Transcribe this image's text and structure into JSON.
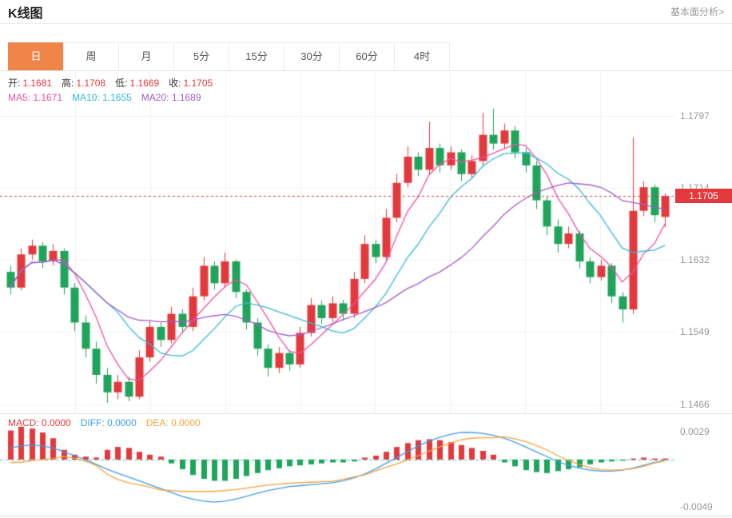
{
  "header": {
    "title": "K线图",
    "link": "基本面分析>"
  },
  "tabs": {
    "items": [
      {
        "label": "日",
        "active": true
      },
      {
        "label": "周",
        "active": false
      },
      {
        "label": "月",
        "active": false
      },
      {
        "label": "5分",
        "active": false
      },
      {
        "label": "15分",
        "active": false
      },
      {
        "label": "30分",
        "active": false
      },
      {
        "label": "60分",
        "active": false
      },
      {
        "label": "4时",
        "active": false
      }
    ],
    "active_color": "#f0854a"
  },
  "info": {
    "ohlc": [
      {
        "label": "开:",
        "value": "1.1681"
      },
      {
        "label": "高:",
        "value": "1.1708"
      },
      {
        "label": "低:",
        "value": "1.1669"
      },
      {
        "label": "收:",
        "value": "1.1705"
      }
    ],
    "ma": [
      {
        "label": "MA5:",
        "value": "1.1671",
        "color": "#f050a2"
      },
      {
        "label": "MA10:",
        "value": "1.1655",
        "color": "#35b8dc"
      },
      {
        "label": "MA20:",
        "value": "1.1689",
        "color": "#a45cc8"
      }
    ]
  },
  "axis": {
    "price_labels": [
      "1.1797",
      "1.1714",
      "1.1632",
      "1.1549",
      "1.1466"
    ],
    "current_price": "1.1705"
  },
  "macd_panel": {
    "labels": [
      {
        "label": "MACD:",
        "value": "0.0000",
        "color": "#e4393c"
      },
      {
        "label": "DIFF:",
        "value": "0.0000",
        "color": "#3e9ce9"
      },
      {
        "label": "DEA:",
        "value": "0.0000",
        "color": "#f5a33d"
      }
    ],
    "axis_labels": [
      "0.0029",
      "-0.0049"
    ]
  },
  "chart_data": {
    "type": "candlestick",
    "title": "K线图 (日)",
    "up_color": "#e4393c",
    "down_color": "#1fa45b",
    "ma_colors": {
      "ma5": "#f050a2",
      "ma10": "#35b8dc",
      "ma20": "#a45cc8"
    },
    "current_price": 1.1705,
    "price_axis": {
      "min": 1.1456,
      "max": 1.1848,
      "gridlines": [
        1.1797,
        1.1714,
        1.1632,
        1.1549,
        1.1466
      ]
    },
    "displayed": {
      "open": 1.1681,
      "high": 1.1708,
      "low": 1.1669,
      "close": 1.1705,
      "ma5": 1.1671,
      "ma10": 1.1655,
      "ma20": 1.1689
    },
    "candles": [
      [
        1.1618,
        1.1625,
        1.1592,
        1.16
      ],
      [
        1.16,
        1.1645,
        1.1597,
        1.1638
      ],
      [
        1.1638,
        1.1655,
        1.1632,
        1.1648
      ],
      [
        1.1648,
        1.1652,
        1.1622,
        1.163
      ],
      [
        1.163,
        1.165,
        1.1625,
        1.1642
      ],
      [
        1.1642,
        1.1645,
        1.1592,
        1.16
      ],
      [
        1.16,
        1.1605,
        1.155,
        1.156
      ],
      [
        1.156,
        1.1568,
        1.152,
        1.153
      ],
      [
        1.153,
        1.1538,
        1.149,
        1.15
      ],
      [
        1.15,
        1.1508,
        1.1468,
        1.148
      ],
      [
        1.148,
        1.15,
        1.1472,
        1.1492
      ],
      [
        1.1492,
        1.1498,
        1.147,
        1.1475
      ],
      [
        1.1475,
        1.1528,
        1.1472,
        1.152
      ],
      [
        1.152,
        1.1562,
        1.1515,
        1.1555
      ],
      [
        1.1555,
        1.156,
        1.1532,
        1.154
      ],
      [
        1.154,
        1.1578,
        1.1536,
        1.157
      ],
      [
        1.157,
        1.1575,
        1.1548,
        1.1555
      ],
      [
        1.1555,
        1.16,
        1.155,
        1.159
      ],
      [
        1.159,
        1.1635,
        1.1585,
        1.1625
      ],
      [
        1.1625,
        1.163,
        1.1598,
        1.1605
      ],
      [
        1.1605,
        1.164,
        1.16,
        1.163
      ],
      [
        1.163,
        1.1632,
        1.1588,
        1.1595
      ],
      [
        1.1595,
        1.1598,
        1.1552,
        1.156
      ],
      [
        1.156,
        1.1565,
        1.1522,
        1.153
      ],
      [
        1.153,
        1.1535,
        1.1498,
        1.1508
      ],
      [
        1.1508,
        1.1532,
        1.1502,
        1.1525
      ],
      [
        1.1525,
        1.1528,
        1.1505,
        1.1512
      ],
      [
        1.1512,
        1.1555,
        1.1508,
        1.1548
      ],
      [
        1.1548,
        1.1588,
        1.1544,
        1.158
      ],
      [
        1.158,
        1.1585,
        1.1558,
        1.1565
      ],
      [
        1.1565,
        1.159,
        1.156,
        1.1582
      ],
      [
        1.1582,
        1.1586,
        1.1562,
        1.157
      ],
      [
        1.157,
        1.1618,
        1.1565,
        1.161
      ],
      [
        1.161,
        1.166,
        1.1605,
        1.165
      ],
      [
        1.165,
        1.1655,
        1.1628,
        1.1635
      ],
      [
        1.1635,
        1.169,
        1.163,
        1.168
      ],
      [
        1.168,
        1.173,
        1.1675,
        1.172
      ],
      [
        1.172,
        1.1762,
        1.1715,
        1.175
      ],
      [
        1.175,
        1.1755,
        1.1728,
        1.1735
      ],
      [
        1.1735,
        1.179,
        1.173,
        1.176
      ],
      [
        1.176,
        1.1765,
        1.1732,
        1.174
      ],
      [
        1.174,
        1.1762,
        1.1735,
        1.1755
      ],
      [
        1.1755,
        1.1758,
        1.1722,
        1.173
      ],
      [
        1.173,
        1.1752,
        1.1725,
        1.1745
      ],
      [
        1.1745,
        1.18,
        1.174,
        1.1775
      ],
      [
        1.1775,
        1.1805,
        1.1758,
        1.1765
      ],
      [
        1.1765,
        1.1788,
        1.176,
        1.178
      ],
      [
        1.178,
        1.1785,
        1.1748,
        1.1755
      ],
      [
        1.1755,
        1.176,
        1.1732,
        1.174
      ],
      [
        1.174,
        1.1745,
        1.169,
        1.17
      ],
      [
        1.17,
        1.1705,
        1.166,
        1.167
      ],
      [
        1.167,
        1.1678,
        1.164,
        1.165
      ],
      [
        1.165,
        1.167,
        1.1645,
        1.1662
      ],
      [
        1.1662,
        1.1665,
        1.1622,
        1.163
      ],
      [
        1.163,
        1.1635,
        1.1605,
        1.1612
      ],
      [
        1.1612,
        1.1632,
        1.1608,
        1.1625
      ],
      [
        1.1625,
        1.1628,
        1.1582,
        1.159
      ],
      [
        1.159,
        1.1595,
        1.156,
        1.1575
      ],
      [
        1.1575,
        1.1772,
        1.157,
        1.1688
      ],
      [
        1.1688,
        1.1722,
        1.1682,
        1.1715
      ],
      [
        1.1715,
        1.1718,
        1.1675,
        1.1683
      ],
      [
        1.1681,
        1.1708,
        1.1669,
        1.1705
      ]
    ],
    "macd": {
      "type": "bar+line",
      "diff_color": "#3e9ce9",
      "dea_color": "#f5a33d",
      "zero_line_color": "#55c8c4",
      "axis": {
        "min": -0.0058,
        "max": 0.0047,
        "gridlines": [
          0.0029,
          -0.0049
        ]
      },
      "hist": [
        0.003,
        0.0034,
        0.0032,
        0.0028,
        0.0022,
        0.001,
        0.0005,
        0.0003,
        0.0002,
        0.001,
        0.0013,
        0.0012,
        0.0008,
        0.0005,
        0.0003,
        -0.0004,
        -0.001,
        -0.0016,
        -0.002,
        -0.0022,
        -0.0022,
        -0.002,
        -0.0017,
        -0.0014,
        -0.0011,
        -0.0009,
        -0.0007,
        -0.0006,
        -0.0005,
        -0.0004,
        -0.0003,
        -0.0003,
        -0.0002,
        0.0002,
        0.0004,
        0.0008,
        0.0013,
        0.0017,
        0.002,
        0.0021,
        0.002,
        0.0018,
        0.0015,
        0.0012,
        0.0009,
        0.0005,
        -0.0003,
        -0.0007,
        -0.0011,
        -0.0013,
        -0.0014,
        -0.0012,
        -0.001,
        -0.0008,
        -0.0005,
        -0.0003,
        -0.0002,
        -0.0001,
        0.0001,
        0.0002,
        0.0001,
        0.0001
      ],
      "diff": [
        0.0012,
        0.0014,
        0.0015,
        0.0014,
        0.0012,
        0.0008,
        0.0004,
        0.0,
        -0.0005,
        -0.001,
        -0.0014,
        -0.0018,
        -0.0022,
        -0.0026,
        -0.003,
        -0.0034,
        -0.0038,
        -0.0041,
        -0.0043,
        -0.0044,
        -0.0043,
        -0.0041,
        -0.0038,
        -0.0035,
        -0.0032,
        -0.003,
        -0.0028,
        -0.0027,
        -0.0026,
        -0.0025,
        -0.0024,
        -0.0022,
        -0.0019,
        -0.0015,
        -0.001,
        -0.0004,
        0.0002,
        0.0008,
        0.0014,
        0.0019,
        0.0023,
        0.0026,
        0.0028,
        0.0028,
        0.0027,
        0.0025,
        0.0022,
        0.0018,
        0.0013,
        0.0008,
        0.0003,
        -0.0002,
        -0.0006,
        -0.0009,
        -0.0011,
        -0.0012,
        -0.0012,
        -0.0011,
        -0.0009,
        -0.0006,
        -0.0003,
        -0.0001
      ]
    }
  }
}
